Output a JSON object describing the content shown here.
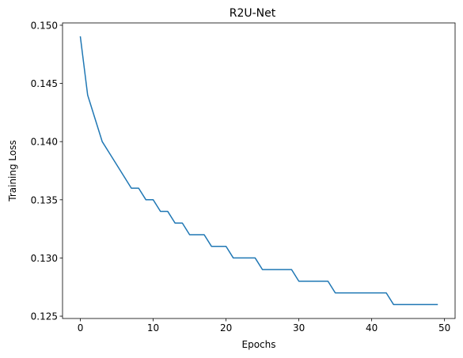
{
  "chart_data": {
    "type": "line",
    "title": "R2U-Net",
    "xlabel": "Epochs",
    "ylabel": "Training Loss",
    "xlim": [
      -2.45,
      51.45
    ],
    "ylim": [
      0.1248,
      0.1502
    ],
    "xticks": [
      0,
      10,
      20,
      30,
      40,
      50
    ],
    "xtick_labels": [
      "0",
      "10",
      "20",
      "30",
      "40",
      "50"
    ],
    "yticks": [
      0.125,
      0.13,
      0.135,
      0.14,
      0.145,
      0.15
    ],
    "ytick_labels": [
      "0.125",
      "0.130",
      "0.135",
      "0.140",
      "0.145",
      "0.150"
    ],
    "grid": false,
    "series": [
      {
        "color": "#1f77b4",
        "x": [
          0,
          1,
          2,
          3,
          4,
          5,
          6,
          7,
          8,
          9,
          10,
          11,
          12,
          13,
          14,
          15,
          16,
          17,
          18,
          19,
          20,
          21,
          22,
          23,
          24,
          25,
          26,
          27,
          28,
          29,
          30,
          31,
          32,
          33,
          34,
          35,
          36,
          37,
          38,
          39,
          40,
          41,
          42,
          43,
          44,
          45,
          46,
          47,
          48,
          49
        ],
        "y": [
          0.149,
          0.144,
          0.142,
          0.14,
          0.139,
          0.138,
          0.137,
          0.136,
          0.136,
          0.135,
          0.135,
          0.134,
          0.134,
          0.133,
          0.133,
          0.132,
          0.132,
          0.132,
          0.131,
          0.131,
          0.131,
          0.13,
          0.13,
          0.13,
          0.13,
          0.129,
          0.129,
          0.129,
          0.129,
          0.129,
          0.128,
          0.128,
          0.128,
          0.128,
          0.128,
          0.127,
          0.127,
          0.127,
          0.127,
          0.127,
          0.127,
          0.127,
          0.127,
          0.126,
          0.126,
          0.126,
          0.126,
          0.126,
          0.126,
          0.126
        ]
      }
    ]
  }
}
